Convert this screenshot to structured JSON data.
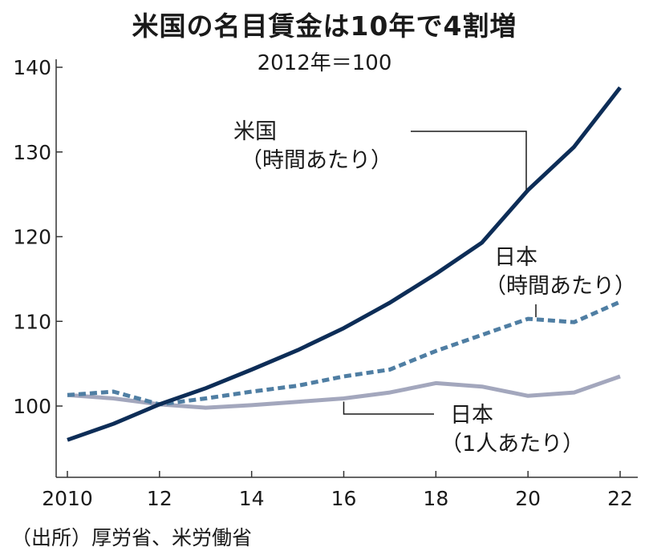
{
  "chart_data": {
    "type": "line",
    "title": "米国の名目賃金は10年で4割増",
    "subtitle": "2012年＝100",
    "xlim": [
      2010,
      2022
    ],
    "ylim": [
      93,
      141
    ],
    "x_ticks": [
      2010,
      2012,
      2014,
      2016,
      2018,
      2020,
      2022
    ],
    "x_tick_labels": [
      "2010",
      "12",
      "14",
      "16",
      "18",
      "20",
      "22"
    ],
    "y_ticks": [
      100,
      110,
      120,
      130,
      140
    ],
    "y_tick_labels": [
      "100",
      "110",
      "120",
      "130",
      "140"
    ],
    "grid": false,
    "series": [
      {
        "name": "米国（時間あたり）",
        "label_lines": [
          "米国",
          "（時間あたり）"
        ],
        "color": "#0d2d57",
        "style": "solid",
        "points": [
          [
            2010,
            96.0
          ],
          [
            2011,
            97.9
          ],
          [
            2012,
            100.2
          ],
          [
            2013,
            102.1
          ],
          [
            2014,
            104.3
          ],
          [
            2015,
            106.6
          ],
          [
            2016,
            109.2
          ],
          [
            2017,
            112.2
          ],
          [
            2018,
            115.6
          ],
          [
            2019,
            119.3
          ],
          [
            2020,
            125.5
          ],
          [
            2021,
            130.6
          ],
          [
            2022,
            137.6
          ]
        ]
      },
      {
        "name": "日本（時間あたり）",
        "label_lines": [
          "日本",
          "（時間あたり）"
        ],
        "color": "#4f7ea3",
        "style": "dashed",
        "points": [
          [
            2010,
            101.3
          ],
          [
            2011,
            101.7
          ],
          [
            2012,
            100.2
          ],
          [
            2013,
            100.9
          ],
          [
            2014,
            101.7
          ],
          [
            2015,
            102.4
          ],
          [
            2016,
            103.5
          ],
          [
            2017,
            104.3
          ],
          [
            2018,
            106.5
          ],
          [
            2019,
            108.4
          ],
          [
            2020,
            110.3
          ],
          [
            2021,
            109.9
          ],
          [
            2022,
            112.3
          ]
        ]
      },
      {
        "name": "日本（1人あたり）",
        "label_lines": [
          "日本",
          "（1人あたり）"
        ],
        "color": "#a3a7bd",
        "style": "solid",
        "points": [
          [
            2010,
            101.3
          ],
          [
            2011,
            100.9
          ],
          [
            2012,
            100.2
          ],
          [
            2013,
            99.8
          ],
          [
            2014,
            100.1
          ],
          [
            2015,
            100.5
          ],
          [
            2016,
            100.9
          ],
          [
            2017,
            101.6
          ],
          [
            2018,
            102.7
          ],
          [
            2019,
            102.3
          ],
          [
            2020,
            101.2
          ],
          [
            2021,
            101.6
          ],
          [
            2022,
            103.5
          ]
        ]
      }
    ],
    "source": "（出所）厚労省、米労働省"
  }
}
